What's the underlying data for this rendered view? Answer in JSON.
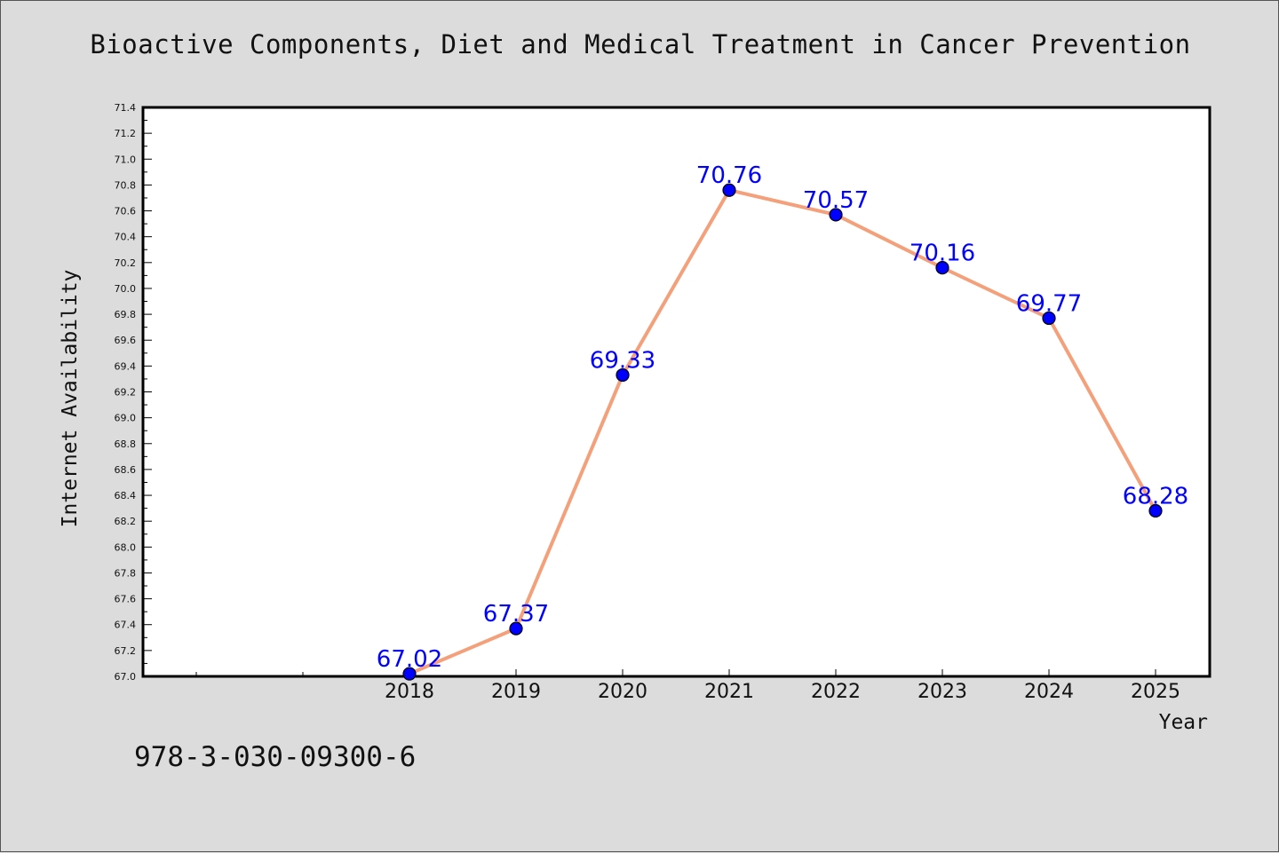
{
  "chart_data": {
    "type": "line",
    "title": "Bioactive Components, Diet and Medical Treatment in Cancer Prevention",
    "xlabel": "Year",
    "ylabel": "Internet Availability",
    "x": [
      "2018",
      "2019",
      "2020",
      "2021",
      "2022",
      "2023",
      "2024",
      "2025"
    ],
    "y": [
      67.02,
      67.37,
      69.33,
      70.76,
      70.57,
      70.16,
      69.77,
      68.28
    ],
    "data_labels": [
      "67.02",
      "67.37",
      "69.33",
      "70.76",
      "70.57",
      "70.16",
      "69.77",
      "68.28"
    ],
    "ylim": [
      67.0,
      71.4
    ],
    "y_tick_labels": [
      "67.0",
      "67.2",
      "67.4",
      "67.6",
      "67.8",
      "68.0",
      "68.2",
      "68.4",
      "68.6",
      "68.8",
      "69.0",
      "69.2",
      "69.4",
      "69.6",
      "69.8",
      "70.0",
      "70.2",
      "70.4",
      "70.6",
      "70.8",
      "71.0",
      "71.2",
      "71.4"
    ],
    "grid": false,
    "line_color": "#f4a07a",
    "marker_color": "#0000ff"
  },
  "footer": {
    "isbn": "978-3-030-09300-6"
  }
}
